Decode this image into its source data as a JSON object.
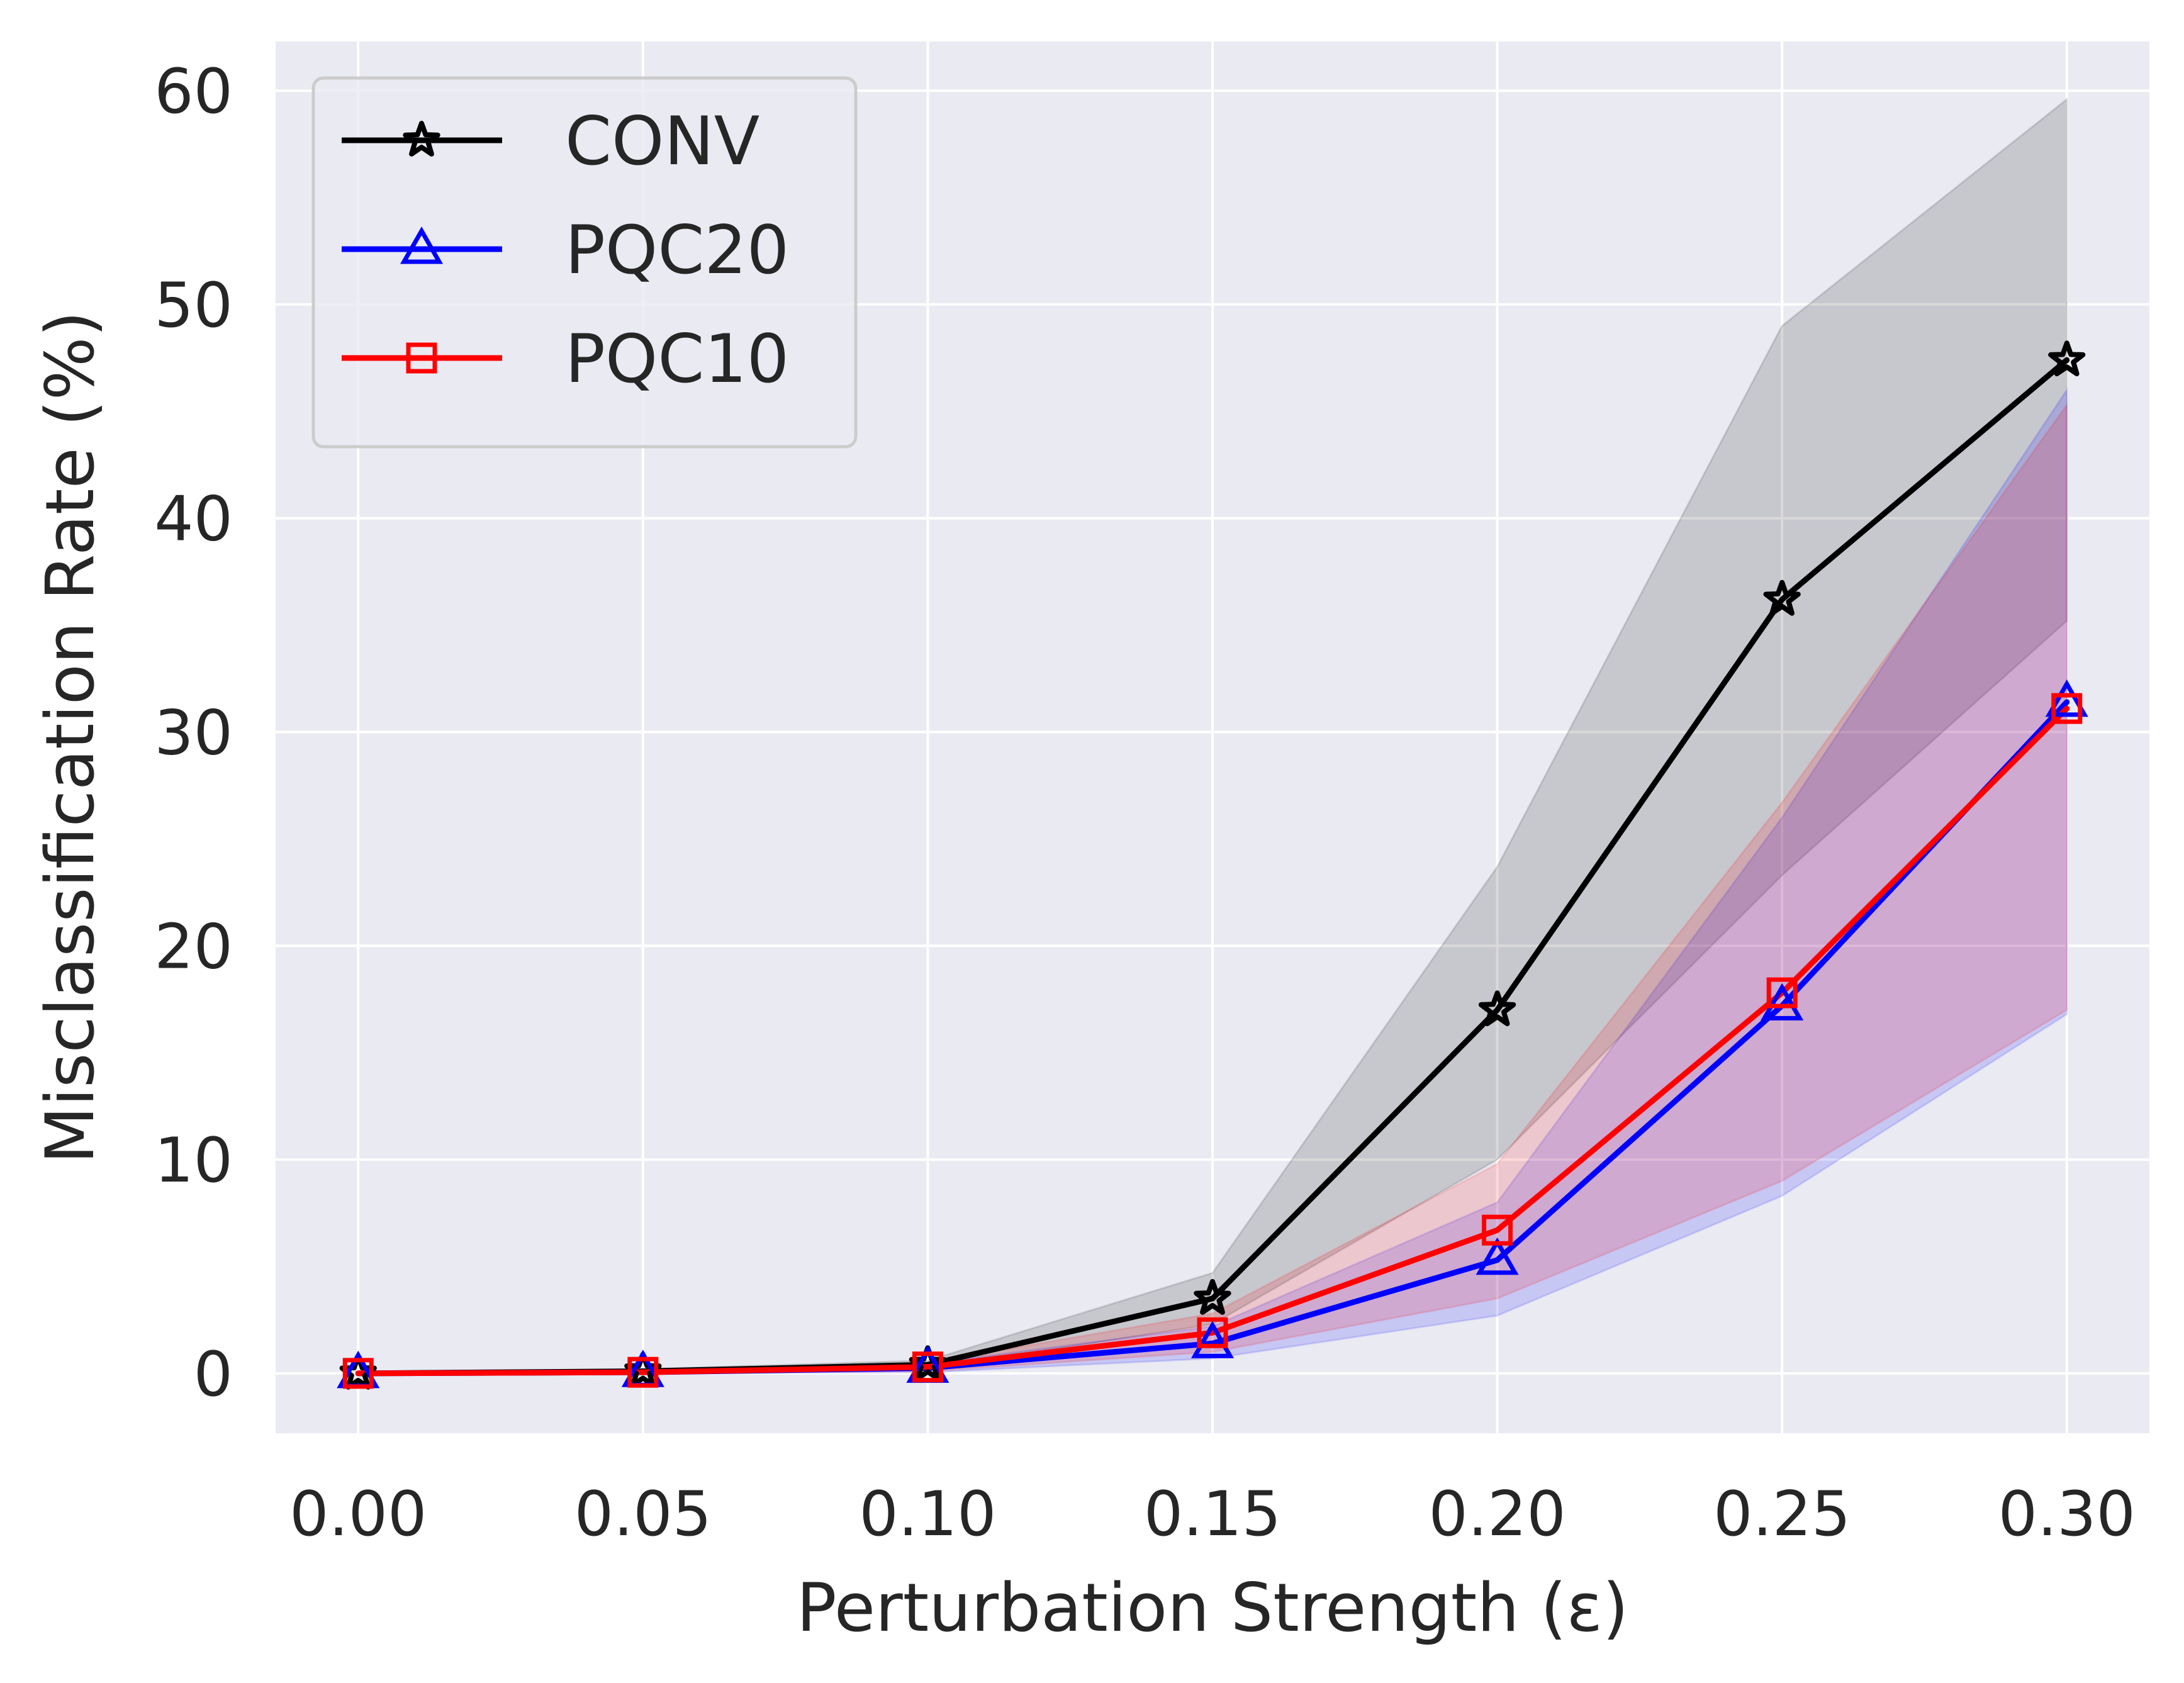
{
  "chart_data": {
    "type": "line",
    "title": "",
    "xlabel": "Perturbation Strength (ε)",
    "ylabel": "Misclassification Rate (%)",
    "x": [
      0.0,
      0.05,
      0.1,
      0.15,
      0.2,
      0.25,
      0.3
    ],
    "x_tick_labels": [
      "0.00",
      "0.05",
      "0.10",
      "0.15",
      "0.20",
      "0.25",
      "0.30"
    ],
    "y_ticks": [
      0,
      10,
      20,
      30,
      40,
      50,
      60
    ],
    "y_tick_labels": [
      "0",
      "10",
      "20",
      "30",
      "40",
      "50",
      "60"
    ],
    "xlim": [
      -0.0145,
      0.3145
    ],
    "ylim": [
      -2.8,
      62.3
    ],
    "grid": true,
    "legend_position": "top-left",
    "series": [
      {
        "name": "CONV",
        "color": "#000000",
        "marker": "star",
        "values": [
          0.0,
          0.1,
          0.4,
          3.5,
          17.0,
          36.2,
          47.4
        ],
        "band_low": [
          0.0,
          0.0,
          0.2,
          2.3,
          10.0,
          23.3,
          35.2
        ],
        "band_high": [
          0.0,
          0.2,
          0.6,
          4.7,
          23.7,
          49.0,
          59.6
        ]
      },
      {
        "name": "PQC20",
        "color": "#0000ff",
        "marker": "triangle",
        "values": [
          0.0,
          0.05,
          0.25,
          1.4,
          5.3,
          17.2,
          31.4
        ],
        "band_low": [
          0.0,
          0.0,
          0.05,
          0.7,
          2.7,
          8.3,
          16.8
        ],
        "band_high": [
          0.0,
          0.1,
          0.45,
          2.2,
          8.0,
          26.0,
          46.0
        ]
      },
      {
        "name": "PQC10",
        "color": "#ff0000",
        "marker": "square",
        "values": [
          0.0,
          0.05,
          0.3,
          1.9,
          6.7,
          17.8,
          31.1
        ],
        "band_low": [
          0.0,
          0.0,
          0.1,
          1.0,
          3.5,
          9.0,
          17.0
        ],
        "band_high": [
          0.0,
          0.1,
          0.5,
          2.8,
          9.8,
          26.7,
          45.3
        ]
      }
    ]
  }
}
